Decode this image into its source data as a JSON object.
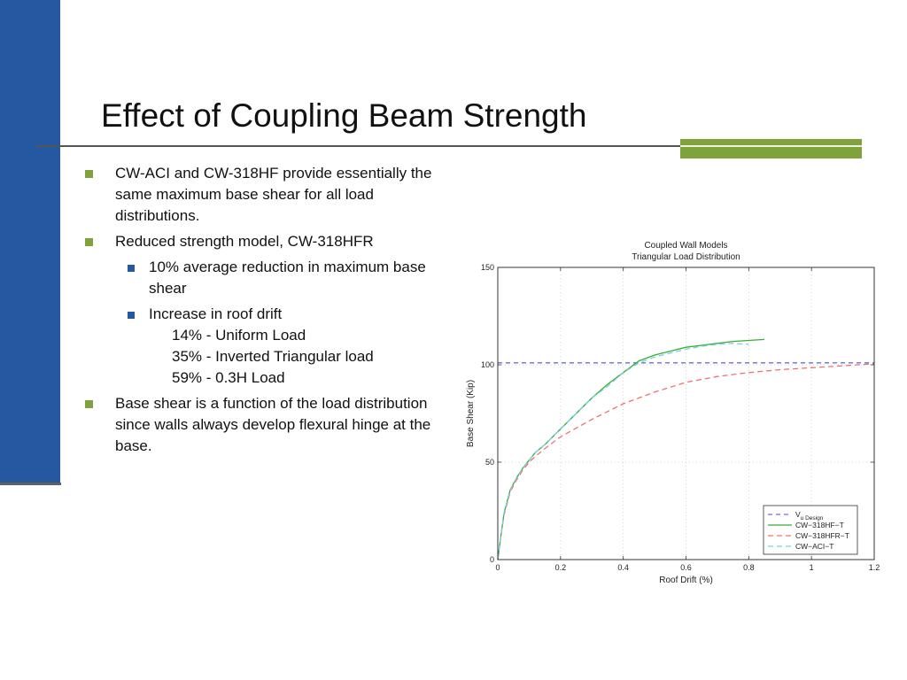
{
  "slide": {
    "title": "Effect of Coupling Beam Strength",
    "bullets": [
      {
        "text": "CW-ACI and CW-318HF provide essentially the same maximum base shear for all load distributions."
      },
      {
        "text": "Reduced strength model, CW-318HFR",
        "sub": [
          {
            "lines": [
              "10% average reduction in maximum base shear"
            ]
          },
          {
            "lines": [
              "Increase in roof drift",
              "14% - Uniform Load",
              "35% - Inverted Triangular load",
              "59% - 0.3H Load"
            ]
          }
        ]
      },
      {
        "text": "Base shear is a function of the load distribution since walls always develop flexural hinge at the base."
      }
    ]
  },
  "colors": {
    "sidebar": "#2459a2",
    "accent_green": "#7ea33a",
    "bullet_blue": "#2459a2"
  },
  "chart_data": {
    "type": "line",
    "title": [
      "Coupled Wall Models",
      "Triangular Load Distribution"
    ],
    "xlabel": "Roof Drift (%)",
    "ylabel": "Base Shear (Kip)",
    "xlim": [
      0,
      1.2
    ],
    "ylim": [
      0,
      150
    ],
    "xticks": [
      0,
      0.2,
      0.4,
      0.6,
      0.8,
      1,
      1.2
    ],
    "xtick_labels": [
      "0",
      "0.2",
      "0.4",
      "0.6",
      "0.8",
      "1",
      "1.2"
    ],
    "yticks": [
      0,
      50,
      100,
      150
    ],
    "ytick_labels": [
      "0",
      "50",
      "100",
      "150"
    ],
    "grid": true,
    "legend_position": "bottom-right",
    "series": [
      {
        "name": "Vu Design",
        "name_main": "V",
        "name_sub": "u Design",
        "color": "#6b6bf0",
        "dash": "5,4",
        "x": [
          0,
          1.2
        ],
        "y": [
          101,
          101
        ]
      },
      {
        "name": "CW−318HF−T",
        "color": "#33b033",
        "dash": "",
        "x": [
          0,
          0.01,
          0.02,
          0.04,
          0.06,
          0.08,
          0.1,
          0.12,
          0.15,
          0.2,
          0.25,
          0.3,
          0.35,
          0.4,
          0.45,
          0.5,
          0.55,
          0.6,
          0.65,
          0.7,
          0.75,
          0.8,
          0.85
        ],
        "y": [
          0,
          12,
          24,
          36,
          42,
          47,
          51,
          55,
          59,
          67,
          75,
          83,
          90,
          96,
          102,
          105,
          107,
          109,
          110,
          111,
          112,
          112.5,
          113
        ]
      },
      {
        "name": "CW−318HFR−T",
        "color": "#f07070",
        "dash": "6,4",
        "x": [
          0,
          0.01,
          0.02,
          0.04,
          0.06,
          0.08,
          0.1,
          0.12,
          0.15,
          0.2,
          0.3,
          0.4,
          0.5,
          0.6,
          0.7,
          0.8,
          0.9,
          1.0,
          1.1,
          1.2
        ],
        "y": [
          0,
          12,
          23,
          35,
          41,
          46,
          50,
          53,
          57,
          63,
          72,
          80,
          86,
          91,
          94,
          96,
          97.5,
          98.5,
          99.5,
          100.5
        ]
      },
      {
        "name": "CW−ACI−T",
        "color": "#77cfe0",
        "dash": "6,4",
        "x": [
          0,
          0.01,
          0.02,
          0.04,
          0.06,
          0.08,
          0.1,
          0.12,
          0.15,
          0.2,
          0.25,
          0.3,
          0.35,
          0.4,
          0.45,
          0.5,
          0.55,
          0.6,
          0.65,
          0.7,
          0.75,
          0.8
        ],
        "y": [
          0,
          12,
          24,
          36,
          42,
          47,
          51,
          55,
          59,
          67,
          75,
          83,
          89,
          96,
          101,
          104,
          106,
          108,
          109.5,
          110.5,
          111,
          110.5
        ]
      }
    ]
  }
}
